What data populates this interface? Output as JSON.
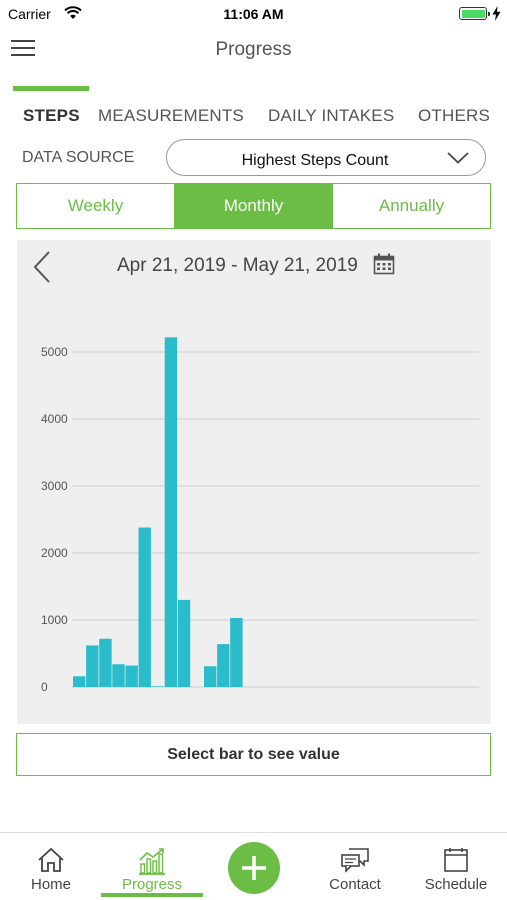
{
  "status_bar": {
    "carrier": "Carrier",
    "time": "11:06 AM",
    "battery_color": "#4cd964"
  },
  "header": {
    "title": "Progress"
  },
  "categories": [
    {
      "label": "STEPS",
      "active": true
    },
    {
      "label": "MEASUREMENTS",
      "active": false
    },
    {
      "label": "DAILY INTAKES",
      "active": false
    },
    {
      "label": "OTHERS",
      "active": false
    }
  ],
  "data_source": {
    "label": "DATA SOURCE",
    "value": "Highest Steps Count"
  },
  "periods": [
    {
      "label": "Weekly",
      "active": false
    },
    {
      "label": "Monthly",
      "active": true
    },
    {
      "label": "Annually",
      "active": false
    }
  ],
  "chart": {
    "date_range": "Apr 21, 2019 - May 21, 2019"
  },
  "chart_data": {
    "type": "bar",
    "ylim": [
      0,
      5000
    ],
    "y_ticks": [
      0,
      1000,
      2000,
      3000,
      4000,
      5000
    ],
    "y_tick_labels": [
      "0",
      "1000",
      "2000",
      "3000",
      "4000",
      "5000"
    ],
    "values": [
      160,
      620,
      720,
      340,
      320,
      2380,
      10,
      5220,
      1300,
      0,
      310,
      640,
      1030
    ],
    "grid": true,
    "bar_color": "#2bbccc"
  },
  "value_box": {
    "text": "Select bar to see value"
  },
  "tabbar": {
    "items": [
      {
        "label": "Home",
        "icon": "home-icon",
        "active": false
      },
      {
        "label": "Progress",
        "icon": "progress-chart-icon",
        "active": true
      },
      {
        "label": "Contact",
        "icon": "chat-icon",
        "active": false
      },
      {
        "label": "Schedule",
        "icon": "calendar-icon",
        "active": false
      }
    ],
    "fab_icon": "plus-icon"
  },
  "colors": {
    "accent": "#6cbd45",
    "panel": "#efefef"
  }
}
